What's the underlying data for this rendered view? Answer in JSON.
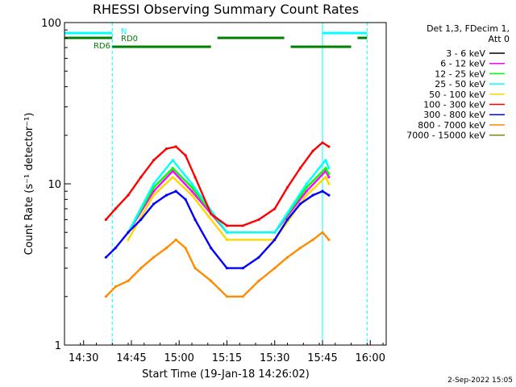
{
  "chart_data": {
    "type": "line",
    "title": "RHESSI Observing Summary Count Rates",
    "ylabel": "Count Rate (s⁻¹ detector⁻¹)",
    "xlabel": "Start Time (19-Jan-18 14:26:02)",
    "yscale": "log",
    "ylim": [
      1,
      100
    ],
    "xlim": [
      "14:24",
      "16:05"
    ],
    "x_ticks": [
      "14:30",
      "14:45",
      "15:00",
      "15:15",
      "15:30",
      "15:45",
      "16:00"
    ],
    "y_ticks": [
      "1",
      "10",
      "100"
    ],
    "legend_title": "Det 1,3, FDecim 1,",
    "legend_title_2": "Att 0",
    "legend_placement": "right",
    "series": [
      {
        "name": "3 - 6 keV",
        "color": "#000000",
        "x": [],
        "values": []
      },
      {
        "name": "6 - 12 keV",
        "color": "#ff00ff",
        "x": [
          "14:44",
          "14:52",
          "14:58",
          "15:04",
          "15:15",
          "15:30",
          "15:40",
          "15:46",
          "15:47"
        ],
        "values": [
          5.0,
          9.0,
          12.0,
          9.0,
          5.0,
          5.0,
          9.0,
          12.0,
          11.0
        ]
      },
      {
        "name": "12 - 25 keV",
        "color": "#00ff00",
        "x": [
          "14:44",
          "14:52",
          "14:58",
          "15:04",
          "15:15",
          "15:30",
          "15:40",
          "15:46",
          "15:47"
        ],
        "values": [
          5.0,
          9.5,
          12.5,
          9.5,
          5.0,
          5.0,
          9.5,
          12.5,
          11.5
        ]
      },
      {
        "name": "25 - 50 keV",
        "color": "#00ffff",
        "x": [
          "14:44",
          "14:52",
          "14:58",
          "15:04",
          "15:15",
          "15:30",
          "15:40",
          "15:46",
          "15:47"
        ],
        "values": [
          5.0,
          10.0,
          14.0,
          10.0,
          5.0,
          5.0,
          10.0,
          14.0,
          12.5
        ]
      },
      {
        "name": "50 - 100 keV",
        "color": "#ffd700",
        "x": [
          "14:44",
          "14:52",
          "14:58",
          "15:04",
          "15:15",
          "15:30",
          "15:40",
          "15:46",
          "15:47"
        ],
        "values": [
          4.5,
          8.5,
          11.0,
          8.5,
          4.5,
          4.5,
          8.5,
          11.0,
          10.0
        ]
      },
      {
        "name": "100 - 300 keV",
        "color": "#ff0000",
        "x": [
          "14:37",
          "14:40",
          "14:44",
          "14:48",
          "14:52",
          "14:56",
          "14:59",
          "15:02",
          "15:05",
          "15:10",
          "15:15",
          "15:20",
          "15:25",
          "15:30",
          "15:34",
          "15:38",
          "15:42",
          "15:45",
          "15:47"
        ],
        "values": [
          6.0,
          7.0,
          8.5,
          11.0,
          14.0,
          16.5,
          17.0,
          15.0,
          11.0,
          6.5,
          5.5,
          5.5,
          6.0,
          7.0,
          9.5,
          12.5,
          16.0,
          18.0,
          17.0
        ]
      },
      {
        "name": "300 - 800 keV",
        "color": "#0000ff",
        "x": [
          "14:37",
          "14:40",
          "14:44",
          "14:48",
          "14:52",
          "14:56",
          "14:59",
          "15:02",
          "15:05",
          "15:10",
          "15:15",
          "15:20",
          "15:25",
          "15:30",
          "15:34",
          "15:38",
          "15:42",
          "15:45",
          "15:47"
        ],
        "values": [
          3.5,
          4.0,
          5.0,
          6.0,
          7.5,
          8.5,
          9.0,
          8.0,
          6.0,
          4.0,
          3.0,
          3.0,
          3.5,
          4.5,
          6.0,
          7.5,
          8.5,
          9.0,
          8.5
        ]
      },
      {
        "name": "800 - 7000 keV",
        "color": "#ff8c00",
        "x": [
          "14:37",
          "14:40",
          "14:44",
          "14:48",
          "14:52",
          "14:56",
          "14:59",
          "15:02",
          "15:05",
          "15:10",
          "15:15",
          "15:20",
          "15:25",
          "15:30",
          "15:34",
          "15:38",
          "15:42",
          "15:45",
          "15:47"
        ],
        "values": [
          2.0,
          2.3,
          2.5,
          3.0,
          3.5,
          4.0,
          4.5,
          4.0,
          3.0,
          2.5,
          2.0,
          2.0,
          2.5,
          3.0,
          3.5,
          4.0,
          4.5,
          5.0,
          4.5
        ]
      },
      {
        "name": "7000 - 15000 keV",
        "color": "#808000",
        "x": [],
        "values": []
      }
    ],
    "flags": [
      {
        "label": "N",
        "color": "#00ffff",
        "segments": [
          [
            "14:24",
            "14:39"
          ],
          [
            "15:45",
            "15:59"
          ]
        ]
      },
      {
        "label": "RD0",
        "color": "#008000",
        "segments": [
          [
            "14:24",
            "14:39"
          ],
          [
            "15:12",
            "15:33"
          ],
          [
            "15:56",
            "15:59"
          ]
        ]
      },
      {
        "label": "RD6",
        "color": "#008000",
        "segments": [
          [
            "14:39",
            "15:10"
          ],
          [
            "15:35",
            "15:54"
          ]
        ]
      }
    ],
    "vlines": {
      "solid": [
        "14:24",
        "15:45"
      ],
      "dashed": [
        "14:39",
        "15:59"
      ],
      "color": "#00ffff"
    }
  },
  "footer": {
    "date": "2-Sep-2022 15:05"
  }
}
